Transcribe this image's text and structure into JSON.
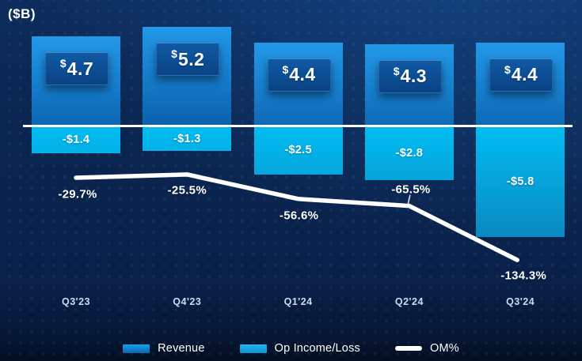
{
  "header": {
    "units_label": "($B)"
  },
  "chart_data": {
    "type": "bar",
    "subtype": "combo-bar-line",
    "currency_symbol": "$",
    "categories": [
      "Q3'23",
      "Q4'23",
      "Q1'24",
      "Q2'24",
      "Q3'24"
    ],
    "series": [
      {
        "name": "Revenue",
        "chart_type": "bar",
        "values": [
          4.7,
          5.2,
          4.4,
          4.3,
          4.4
        ],
        "labels": [
          "$4.7",
          "$5.2",
          "$4.4",
          "$4.3",
          "$4.4"
        ],
        "color_top": "#2299E7",
        "color_bottom": "#0A60AD"
      },
      {
        "name": "Op Income/Loss",
        "chart_type": "bar",
        "values": [
          -1.4,
          -1.3,
          -2.5,
          -2.8,
          -5.8
        ],
        "labels": [
          "-$1.4",
          "-$1.3",
          "-$2.5",
          "-$2.8",
          "-$5.8"
        ],
        "color_top": "#00BDF2",
        "color_bottom": "#0B89C2"
      },
      {
        "name": "OM%",
        "chart_type": "line",
        "values": [
          -29.7,
          -25.5,
          -56.6,
          -65.5,
          -134.3
        ],
        "labels": [
          "-29.7%",
          "-25.5%",
          "-56.6%",
          "-65.5%",
          "-134.3%"
        ],
        "color": "#FFFFFF"
      }
    ],
    "title": "($B)",
    "ylabel": "",
    "xlabel": "",
    "baseline": 0,
    "grid": false,
    "legend_position": "bottom",
    "background_color": "#0B2750",
    "zero_line_color": "#FFFFFF"
  },
  "legend": {
    "items": [
      {
        "label": "Revenue"
      },
      {
        "label": "Op Income/Loss"
      },
      {
        "label": "OM%"
      }
    ]
  }
}
